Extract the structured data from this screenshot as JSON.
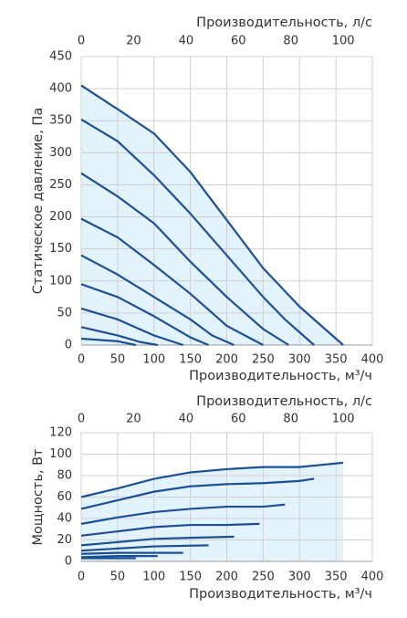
{
  "chart_data": [
    {
      "type": "line",
      "x2label": "Производительность, л/с",
      "xlabel": "Производительность, м³/ч",
      "ylabel": "Статическое давление, Па",
      "xlim": [
        0,
        400
      ],
      "xticks": [
        0,
        50,
        100,
        150,
        200,
        250,
        300,
        350,
        400
      ],
      "x2lim": [
        0,
        111.1
      ],
      "x2ticks": [
        0,
        20,
        40,
        60,
        80,
        100
      ],
      "ylim": [
        0,
        450
      ],
      "yticks": [
        0,
        50,
        100,
        150,
        200,
        250,
        300,
        350,
        400,
        450
      ],
      "grid": true,
      "fill": "#e3f3fc",
      "series": [
        {
          "color": "#1d4f96",
          "x": [
            0,
            50,
            100,
            150,
            200,
            250,
            300,
            360
          ],
          "values": [
            405,
            368,
            330,
            270,
            195,
            120,
            60,
            0
          ]
        },
        {
          "color": "#1d4f96",
          "x": [
            0,
            50,
            100,
            150,
            200,
            250,
            280,
            320
          ],
          "values": [
            352,
            318,
            265,
            205,
            140,
            75,
            40,
            0
          ]
        },
        {
          "color": "#1d4f96",
          "x": [
            0,
            50,
            100,
            150,
            200,
            250,
            285
          ],
          "values": [
            268,
            232,
            190,
            130,
            75,
            25,
            0
          ]
        },
        {
          "color": "#1d4f96",
          "x": [
            0,
            50,
            100,
            150,
            200,
            250
          ],
          "values": [
            197,
            168,
            125,
            80,
            30,
            0
          ]
        },
        {
          "color": "#1d4f96",
          "x": [
            0,
            50,
            100,
            150,
            180,
            210
          ],
          "values": [
            140,
            110,
            75,
            40,
            15,
            0
          ]
        },
        {
          "color": "#1d4f96",
          "x": [
            0,
            50,
            100,
            150,
            175
          ],
          "values": [
            95,
            75,
            45,
            12,
            0
          ]
        },
        {
          "color": "#1d4f96",
          "x": [
            0,
            50,
            100,
            140
          ],
          "values": [
            57,
            40,
            15,
            0
          ]
        },
        {
          "color": "#1d4f96",
          "x": [
            0,
            50,
            80,
            105
          ],
          "values": [
            28,
            15,
            5,
            0
          ]
        },
        {
          "color": "#1d4f96",
          "x": [
            0,
            50,
            75
          ],
          "values": [
            10,
            6,
            0
          ]
        }
      ]
    },
    {
      "type": "line",
      "x2label": "Производительность, л/с",
      "xlabel": "Производительность, м³/ч",
      "ylabel": "Мощность, Вт",
      "xlim": [
        0,
        400
      ],
      "xticks": [
        0,
        50,
        100,
        150,
        200,
        250,
        300,
        350,
        400
      ],
      "x2lim": [
        0,
        111.1
      ],
      "x2ticks": [
        0,
        20,
        40,
        60,
        80,
        100
      ],
      "ylim": [
        0,
        120
      ],
      "yticks": [
        0,
        20,
        40,
        60,
        80,
        100,
        120
      ],
      "grid": true,
      "fill": "#e3f3fc",
      "series": [
        {
          "color": "#1d4f96",
          "x": [
            0,
            50,
            100,
            150,
            200,
            250,
            300,
            360
          ],
          "values": [
            60,
            68,
            77,
            83,
            86,
            88,
            88,
            92
          ]
        },
        {
          "color": "#1d4f96",
          "x": [
            0,
            50,
            100,
            150,
            200,
            250,
            300,
            320
          ],
          "values": [
            49,
            57,
            65,
            70,
            72,
            73,
            75,
            77
          ]
        },
        {
          "color": "#1d4f96",
          "x": [
            0,
            50,
            100,
            150,
            200,
            250,
            280
          ],
          "values": [
            35,
            41,
            46,
            49,
            51,
            51,
            53
          ]
        },
        {
          "color": "#1d4f96",
          "x": [
            0,
            50,
            100,
            150,
            200,
            245
          ],
          "values": [
            24,
            28,
            32,
            34,
            34,
            35
          ]
        },
        {
          "color": "#1d4f96",
          "x": [
            0,
            50,
            100,
            150,
            210
          ],
          "values": [
            15,
            18,
            21,
            22,
            23
          ]
        },
        {
          "color": "#1d4f96",
          "x": [
            0,
            50,
            100,
            175
          ],
          "values": [
            10,
            12,
            14,
            15
          ]
        },
        {
          "color": "#1d4f96",
          "x": [
            0,
            50,
            100,
            140
          ],
          "values": [
            7,
            8,
            8,
            8
          ]
        },
        {
          "color": "#1d4f96",
          "x": [
            0,
            50,
            105
          ],
          "values": [
            4,
            5,
            5
          ]
        },
        {
          "color": "#1d4f96",
          "x": [
            0,
            50,
            75
          ],
          "values": [
            3,
            3,
            3
          ]
        }
      ]
    }
  ]
}
